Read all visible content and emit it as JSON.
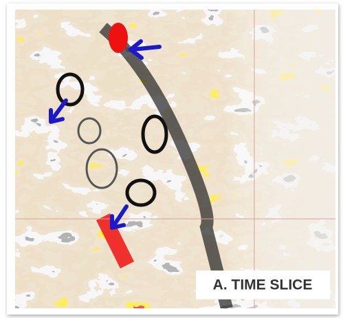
{
  "label": "A. TIME SLICE"
}
